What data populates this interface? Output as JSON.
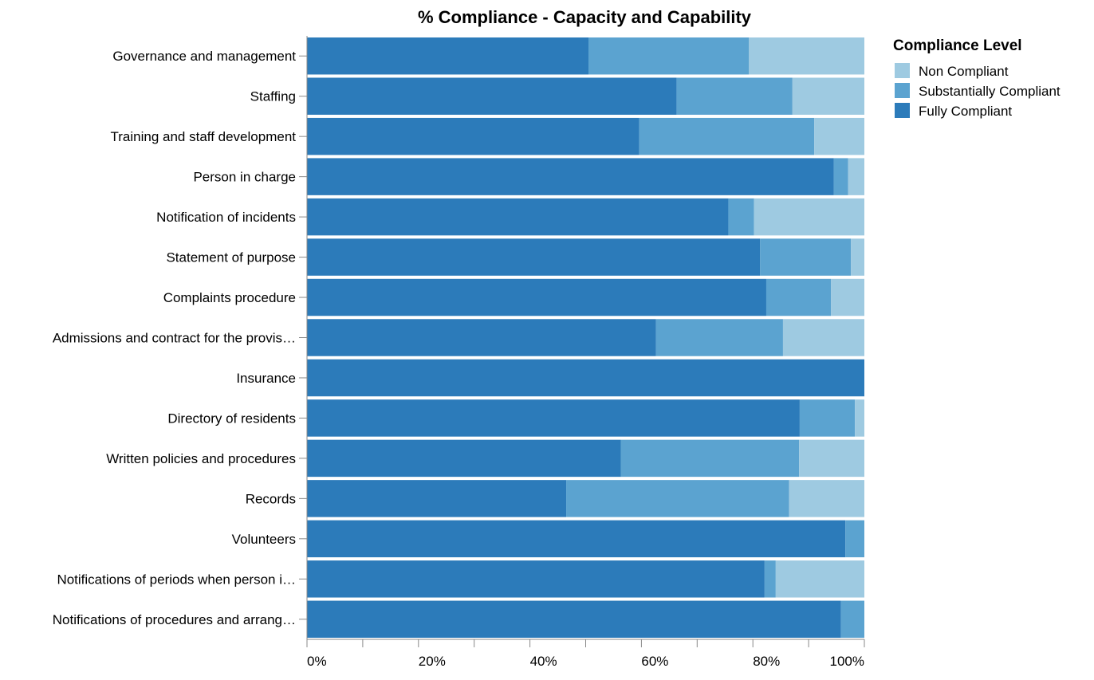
{
  "chart_data": {
    "type": "bar",
    "orientation": "horizontal",
    "stacked": true,
    "normalized": true,
    "title": "% Compliance - Capacity and Capability",
    "xlabel": "",
    "ylabel": "",
    "xlim": [
      0,
      100
    ],
    "x_ticks": [
      "0%",
      "20%",
      "40%",
      "60%",
      "80%",
      "100%"
    ],
    "grid": false,
    "legend": {
      "title": "Compliance Level",
      "placement": "top-right"
    },
    "categories": [
      "Governance and management",
      "Staffing",
      "Training and staff development",
      "Person in charge",
      "Notification of incidents",
      "Statement of purpose",
      "Complaints procedure",
      "Admissions and contract for the provis…",
      "Insurance",
      "Directory of residents",
      "Written policies and procedures",
      "Records",
      "Volunteers",
      "Notifications of periods when person i…",
      "Notifications of procedures and arrang…"
    ],
    "series": [
      {
        "name": "Fully Compliant",
        "color": "#2c7bba",
        "values": [
          50.5,
          66.3,
          59.6,
          94.5,
          75.6,
          81.3,
          82.4,
          62.6,
          100,
          88.4,
          56.3,
          46.5,
          96.6,
          82.1,
          95.8
        ]
      },
      {
        "name": "Substantially Compliant",
        "color": "#5ba3d0",
        "values": [
          28.8,
          20.8,
          31.4,
          2.6,
          4.6,
          16.3,
          11.6,
          22.8,
          0,
          9.9,
          32.0,
          40.0,
          3.4,
          2.0,
          4.2
        ]
      },
      {
        "name": "Non Compliant",
        "color": "#9ecae1",
        "values": [
          20.7,
          12.9,
          9.0,
          2.9,
          19.8,
          2.4,
          6.0,
          14.6,
          0,
          1.7,
          11.7,
          13.5,
          0,
          15.9,
          0
        ]
      }
    ],
    "legend_order": [
      "Non Compliant",
      "Substantially Compliant",
      "Fully Compliant"
    ]
  }
}
